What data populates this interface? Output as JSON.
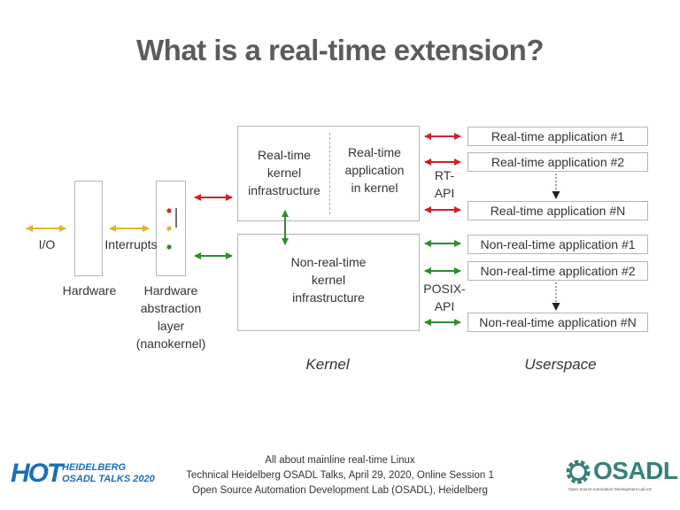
{
  "title": "What is a real-time extension?",
  "diagram": {
    "io_label": "I/O",
    "hardware_label": "Hardware",
    "interrupts_label": "Interrupts",
    "hal_label": "Hardware\nabstraction\nlayer\n(nanokernel)",
    "rt_kernel_infra": "Real-time\nkernel\ninfrastructure",
    "rt_app_in_kernel": "Real-time\napplication\nin kernel",
    "nrt_kernel_infra": "Non-real-time\nkernel\ninfrastructure",
    "rt_api": "RT-\nAPI",
    "posix_api": "POSIX-\nAPI",
    "kernel_caption": "Kernel",
    "userspace_caption": "Userspace",
    "rt_apps": [
      "Real-time application #1",
      "Real-time application #2",
      "Real-time application #N"
    ],
    "nrt_apps": [
      "Non-real-time application #1",
      "Non-real-time application #2",
      "Non-real-time application #N"
    ],
    "colors": {
      "realtime": "#d0202a",
      "nonrealtime": "#2e8b2e",
      "io": "#e8b030",
      "light_red": "#c8282a",
      "light_yellow": "#e3b22a",
      "light_green": "#2e8b2e"
    }
  },
  "footer": {
    "line1": "All about mainline real-time Linux",
    "line2": "Technical Heidelberg OSADL Talks, April 29, 2020, Online Session 1",
    "line3": "Open Source Automation Development Lab (OSADL), Heidelberg"
  },
  "logo_left": {
    "hot": "HOT",
    "line1": "HEIDELBERG",
    "line2": "OSADL TALKS 2020"
  },
  "logo_right": {
    "name": "OSADL",
    "tagline": "Open Source Automation Development Lab eG"
  }
}
